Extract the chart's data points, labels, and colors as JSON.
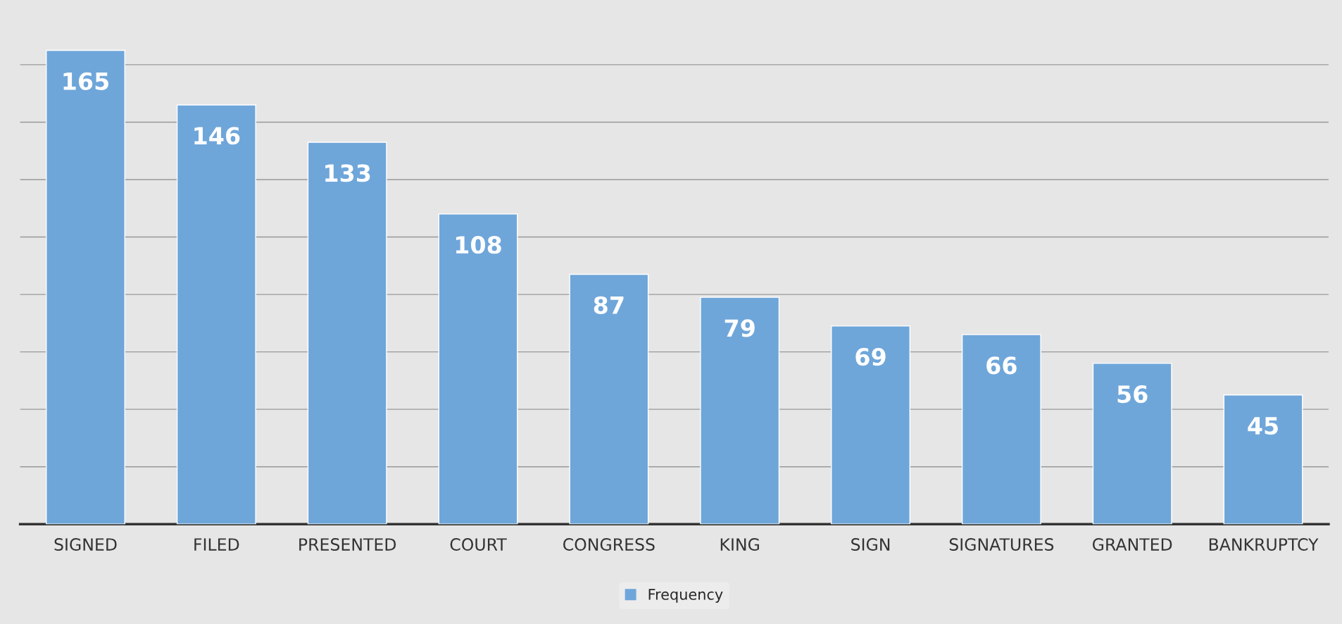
{
  "chart_data": {
    "type": "bar",
    "categories": [
      "SIGNED",
      "FILED",
      "PRESENTED",
      "COURT",
      "CONGRESS",
      "KING",
      "SIGN",
      "SIGNATURES",
      "GRANTED",
      "BANKRUPTCY"
    ],
    "series": [
      {
        "name": "Frequency",
        "color": "#6fa6da",
        "values": [
          165,
          146,
          133,
          108,
          87,
          79,
          69,
          66,
          56,
          45
        ]
      }
    ],
    "data_labels": true,
    "yticks": [
      {
        "value": 0,
        "label": null
      },
      {
        "value": 20,
        "label": null
      },
      {
        "value": 40,
        "label": null
      },
      {
        "value": 60,
        "label": null
      },
      {
        "value": 80,
        "label": null
      },
      {
        "value": 100,
        "label": null
      },
      {
        "value": 120,
        "label": null
      },
      {
        "value": 140,
        "label": null
      },
      {
        "value": 160,
        "label": null
      }
    ],
    "tick_labels": "x",
    "grid": "y",
    "legend": "bottom"
  }
}
